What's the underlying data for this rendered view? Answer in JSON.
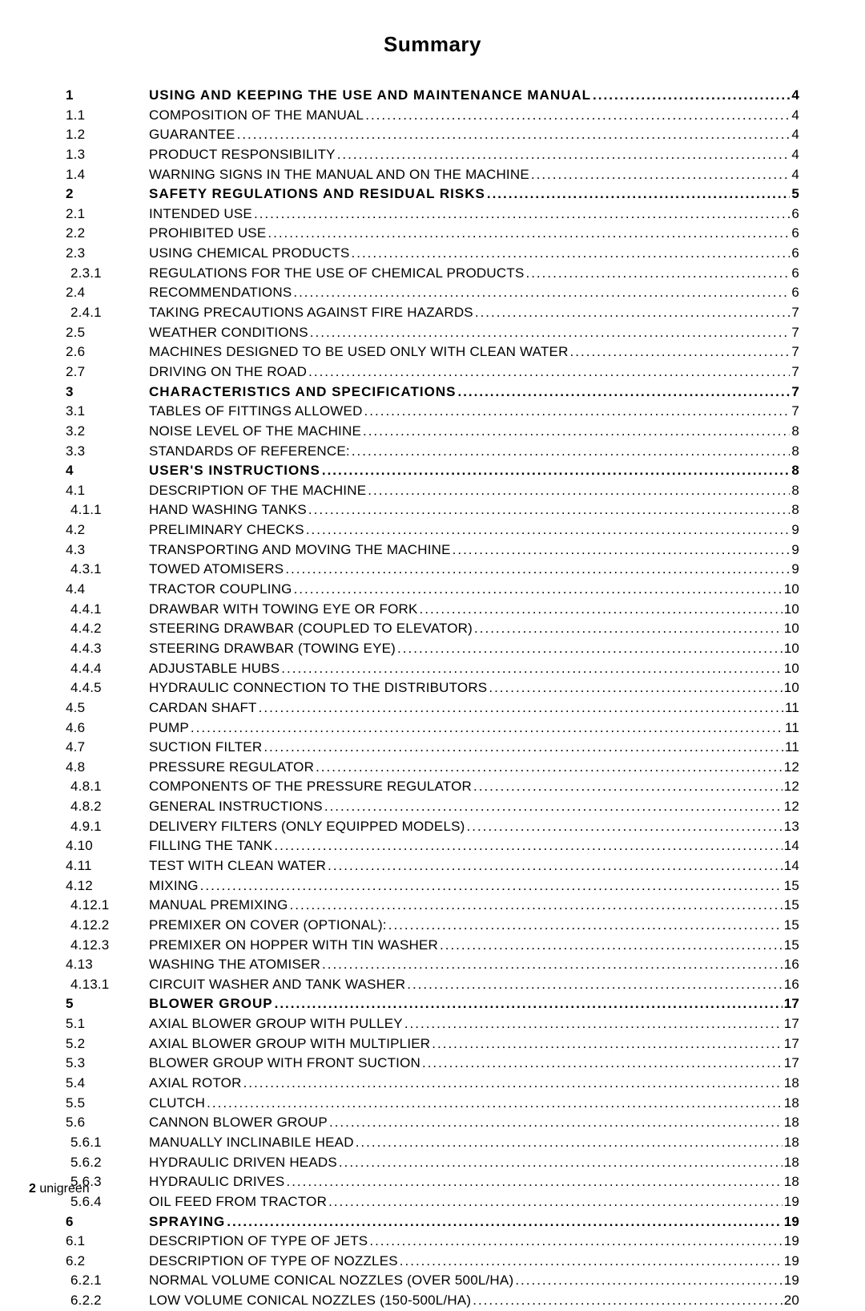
{
  "title": "Summary",
  "footer": {
    "pagenum": "2",
    "brand": "unigreen"
  },
  "toc": [
    {
      "num": "1",
      "label": "USING AND KEEPING THE USE AND MAINTENANCE MANUAL",
      "page": "4",
      "bold": true,
      "indent": 0
    },
    {
      "num": "1.1",
      "label": "COMPOSITION OF THE MANUAL",
      "page": "4",
      "bold": false,
      "indent": 0
    },
    {
      "num": "1.2",
      "label": "GUARANTEE",
      "page": "4",
      "bold": false,
      "indent": 0
    },
    {
      "num": "1.3",
      "label": "PRODUCT RESPONSIBILITY",
      "page": "4",
      "bold": false,
      "indent": 0
    },
    {
      "num": "1.4",
      "label": "WARNING SIGNS IN THE MANUAL AND ON THE MACHINE",
      "page": "4",
      "bold": false,
      "indent": 0
    },
    {
      "num": "2",
      "label": "SAFETY REGULATIONS AND RESIDUAL RISKS",
      "page": "5",
      "bold": true,
      "indent": 0
    },
    {
      "num": "2.1",
      "label": "INTENDED USE",
      "page": "6",
      "bold": false,
      "indent": 0
    },
    {
      "num": "2.2",
      "label": "PROHIBITED USE",
      "page": "6",
      "bold": false,
      "indent": 0
    },
    {
      "num": "2.3",
      "label": "USING CHEMICAL PRODUCTS",
      "page": "6",
      "bold": false,
      "indent": 0
    },
    {
      "num": "2.3.1",
      "label": "REGULATIONS FOR THE USE OF CHEMICAL PRODUCTS",
      "page": "6",
      "bold": false,
      "indent": 1
    },
    {
      "num": "2.4",
      "label": "RECOMMENDATIONS",
      "page": "6",
      "bold": false,
      "indent": 0
    },
    {
      "num": "2.4.1",
      "label": "TAKING PRECAUTIONS AGAINST FIRE HAZARDS",
      "page": "7",
      "bold": false,
      "indent": 1
    },
    {
      "num": "2.5",
      "label": "WEATHER CONDITIONS",
      "page": "7",
      "bold": false,
      "indent": 0
    },
    {
      "num": "2.6",
      "label": "MACHINES DESIGNED TO BE USED ONLY WITH CLEAN WATER",
      "page": "7",
      "bold": false,
      "indent": 0
    },
    {
      "num": "2.7",
      "label": "DRIVING ON THE ROAD",
      "page": "7",
      "bold": false,
      "indent": 0
    },
    {
      "num": "3",
      "label": "CHARACTERISTICS AND SPECIFICATIONS",
      "page": "7",
      "bold": true,
      "indent": 0
    },
    {
      "num": "3.1",
      "label": "TABLES OF FITTINGS ALLOWED",
      "page": "7",
      "bold": false,
      "indent": 0
    },
    {
      "num": "3.2",
      "label": "NOISE LEVEL OF THE MACHINE",
      "page": "8",
      "bold": false,
      "indent": 0
    },
    {
      "num": "3.3",
      "label": "STANDARDS OF REFERENCE:",
      "page": "8",
      "bold": false,
      "indent": 0
    },
    {
      "num": "4",
      "label": "USER'S INSTRUCTIONS",
      "page": "8",
      "bold": true,
      "indent": 0
    },
    {
      "num": "4.1",
      "label": "DESCRIPTION OF THE MACHINE",
      "page": "8",
      "bold": false,
      "indent": 0
    },
    {
      "num": "4.1.1",
      "label": "HAND WASHING TANKS",
      "page": "8",
      "bold": false,
      "indent": 1
    },
    {
      "num": "4.2",
      "label": "PRELIMINARY CHECKS",
      "page": "9",
      "bold": false,
      "indent": 0
    },
    {
      "num": "4.3",
      "label": "TRANSPORTING AND MOVING THE MACHINE",
      "page": "9",
      "bold": false,
      "indent": 0
    },
    {
      "num": "4.3.1",
      "label": "TOWED ATOMISERS",
      "page": "9",
      "bold": false,
      "indent": 1
    },
    {
      "num": "4.4",
      "label": "TRACTOR COUPLING",
      "page": "10",
      "bold": false,
      "indent": 0
    },
    {
      "num": "4.4.1",
      "label": "DRAWBAR WITH TOWING EYE OR FORK",
      "page": "10",
      "bold": false,
      "indent": 1
    },
    {
      "num": "4.4.2",
      "label": "STEERING DRAWBAR (COUPLED TO ELEVATOR)",
      "page": "10",
      "bold": false,
      "indent": 1
    },
    {
      "num": "4.4.3",
      "label": "STEERING DRAWBAR (TOWING EYE)",
      "page": "10",
      "bold": false,
      "indent": 1
    },
    {
      "num": "4.4.4",
      "label": "ADJUSTABLE HUBS",
      "page": "10",
      "bold": false,
      "indent": 1
    },
    {
      "num": "4.4.5",
      "label": "HYDRAULIC CONNECTION TO THE DISTRIBUTORS",
      "page": "10",
      "bold": false,
      "indent": 1
    },
    {
      "num": "4.5",
      "label": "CARDAN SHAFT",
      "page": "11",
      "bold": false,
      "indent": 0
    },
    {
      "num": "4.6",
      "label": "PUMP",
      "page": "11",
      "bold": false,
      "indent": 0
    },
    {
      "num": "4.7",
      "label": "SUCTION FILTER",
      "page": "11",
      "bold": false,
      "indent": 0
    },
    {
      "num": "4.8",
      "label": "PRESSURE REGULATOR",
      "page": "12",
      "bold": false,
      "indent": 0
    },
    {
      "num": "4.8.1",
      "label": "COMPONENTS OF THE PRESSURE REGULATOR",
      "page": "12",
      "bold": false,
      "indent": 1
    },
    {
      "num": "4.8.2",
      "label": "GENERAL INSTRUCTIONS",
      "page": "12",
      "bold": false,
      "indent": 1
    },
    {
      "num": "4.9.1",
      "label": "DELIVERY FILTERS (ONLY EQUIPPED MODELS)",
      "page": "13",
      "bold": false,
      "indent": 1
    },
    {
      "num": "4.10",
      "label": "FILLING THE TANK",
      "page": "14",
      "bold": false,
      "indent": 0
    },
    {
      "num": "4.11",
      "label": "TEST WITH CLEAN WATER",
      "page": "14",
      "bold": false,
      "indent": 0
    },
    {
      "num": "4.12",
      "label": "MIXING",
      "page": "15",
      "bold": false,
      "indent": 0
    },
    {
      "num": "4.12.1",
      "label": "MANUAL PREMIXING",
      "page": "15",
      "bold": false,
      "indent": 1
    },
    {
      "num": "4.12.2",
      "label": "PREMIXER ON COVER (OPTIONAL):",
      "page": "15",
      "bold": false,
      "indent": 1
    },
    {
      "num": "4.12.3",
      "label": "PREMIXER ON HOPPER WITH TIN WASHER",
      "page": "15",
      "bold": false,
      "indent": 1
    },
    {
      "num": "4.13",
      "label": "WASHING THE ATOMISER",
      "page": "16",
      "bold": false,
      "indent": 0
    },
    {
      "num": "4.13.1",
      "label": "CIRCUIT WASHER AND TANK WASHER",
      "page": "16",
      "bold": false,
      "indent": 1
    },
    {
      "num": "5",
      "label": "BLOWER GROUP",
      "page": "17",
      "bold": true,
      "indent": 0
    },
    {
      "num": "5.1",
      "label": "AXIAL BLOWER GROUP WITH PULLEY",
      "page": "17",
      "bold": false,
      "indent": 0
    },
    {
      "num": "5.2",
      "label": "AXIAL BLOWER GROUP WITH MULTIPLIER",
      "page": "17",
      "bold": false,
      "indent": 0
    },
    {
      "num": "5.3",
      "label": "BLOWER GROUP WITH FRONT SUCTION",
      "page": "17",
      "bold": false,
      "indent": 0
    },
    {
      "num": "5.4",
      "label": "AXIAL ROTOR",
      "page": "18",
      "bold": false,
      "indent": 0
    },
    {
      "num": "5.5",
      "label": "CLUTCH",
      "page": "18",
      "bold": false,
      "indent": 0
    },
    {
      "num": "5.6",
      "label": "CANNON BLOWER GROUP",
      "page": "18",
      "bold": false,
      "indent": 0
    },
    {
      "num": "5.6.1",
      "label": "MANUALLY INCLINABILE HEAD",
      "page": "18",
      "bold": false,
      "indent": 1
    },
    {
      "num": "5.6.2",
      "label": "HYDRAULIC DRIVEN HEADS",
      "page": "18",
      "bold": false,
      "indent": 1
    },
    {
      "num": "5.6.3",
      "label": "HYDRAULIC DRIVES",
      "page": "18",
      "bold": false,
      "indent": 1
    },
    {
      "num": "5.6.4",
      "label": "OIL FEED FROM TRACTOR",
      "page": "19",
      "bold": false,
      "indent": 1
    },
    {
      "num": "6",
      "label": "SPRAYING",
      "page": "19",
      "bold": true,
      "indent": 0
    },
    {
      "num": "6.1",
      "label": "DESCRIPTION OF TYPE OF JETS",
      "page": "19",
      "bold": false,
      "indent": 0
    },
    {
      "num": "6.2",
      "label": "DESCRIPTION OF TYPE OF NOZZLES",
      "page": "19",
      "bold": false,
      "indent": 0
    },
    {
      "num": "6.2.1",
      "label": "NORMAL VOLUME CONICAL NOZZLES (OVER 500L/HA)",
      "page": "19",
      "bold": false,
      "indent": 1
    },
    {
      "num": "6.2.2",
      "label": "LOW VOLUME CONICAL NOZZLES (150-500L/HA)",
      "page": "20",
      "bold": false,
      "indent": 1
    }
  ]
}
